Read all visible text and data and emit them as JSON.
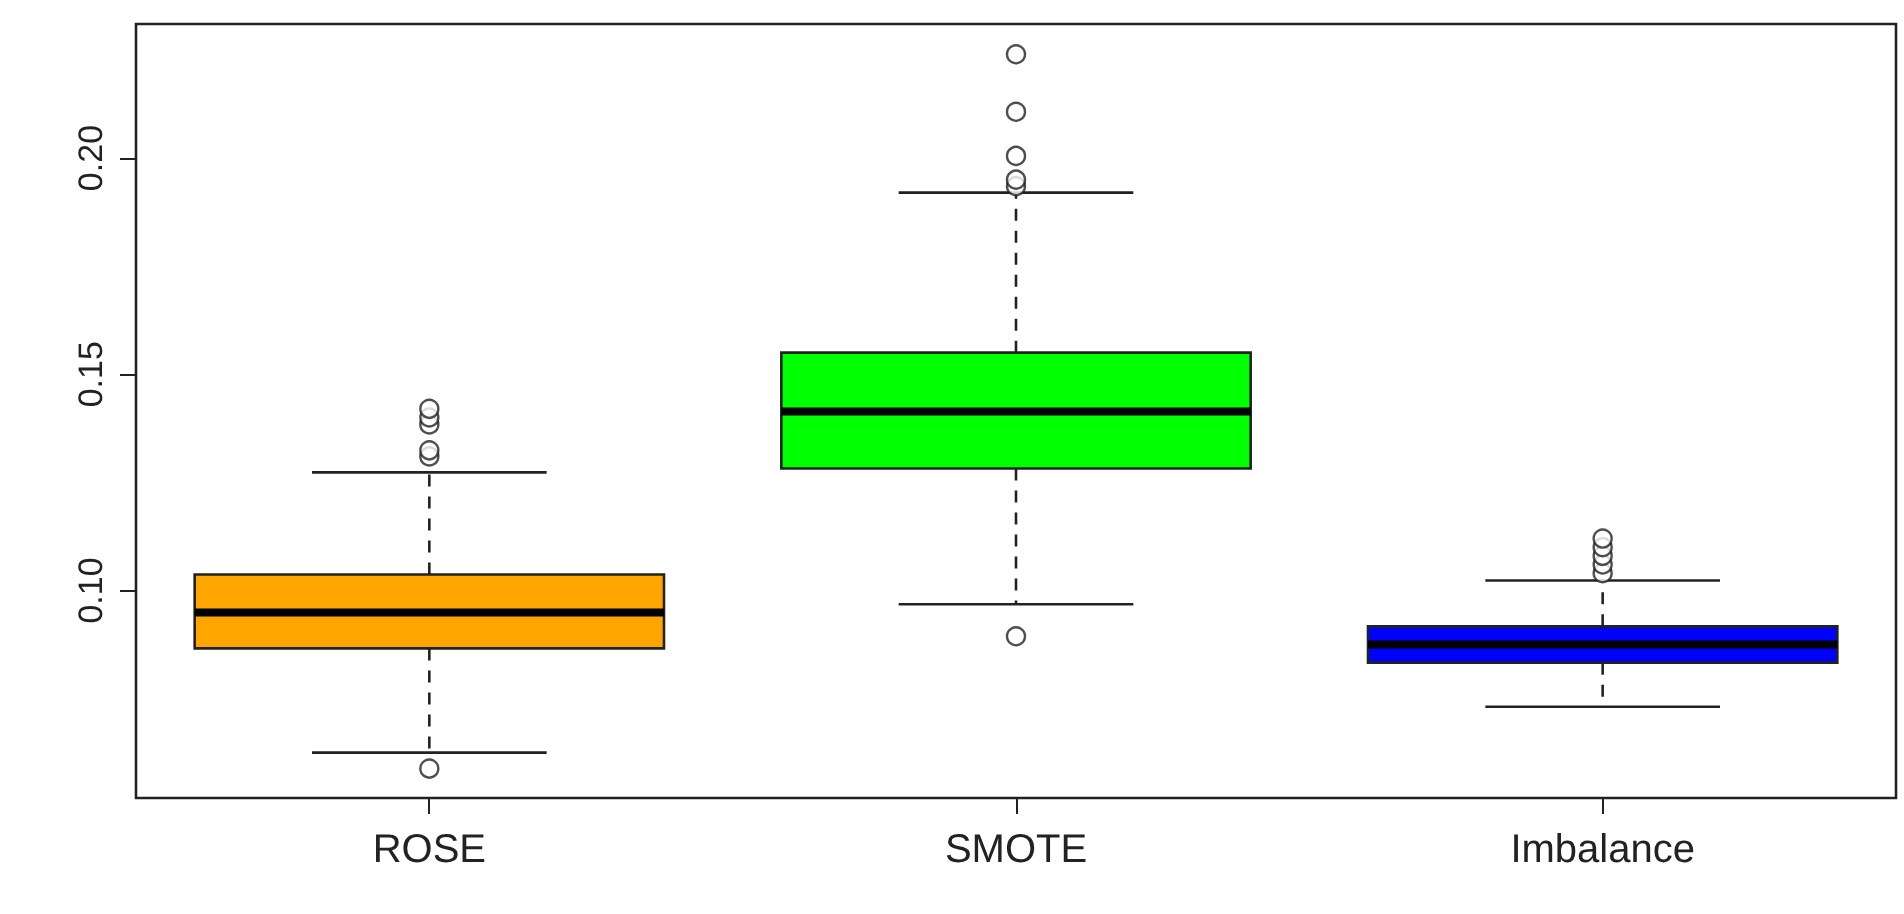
{
  "chart_data": {
    "type": "box",
    "categories": [
      "ROSE",
      "SMOTE",
      "Imbalance"
    ],
    "colors": [
      "#ffa500",
      "#00ff00",
      "#0000ff"
    ],
    "boxes": [
      {
        "low": 0.0625,
        "q1": 0.0866,
        "median": 0.0949,
        "q3": 0.1037,
        "high": 0.1273,
        "outliers": [
          0.0588,
          0.131,
          0.1324,
          0.1384,
          0.14,
          0.142
        ]
      },
      {
        "low": 0.0968,
        "q1": 0.1282,
        "median": 0.1414,
        "q3": 0.155,
        "high": 0.192,
        "outliers": [
          0.0894,
          0.1935,
          0.195,
          0.2005,
          0.2107,
          0.224
        ]
      },
      {
        "low": 0.0731,
        "q1": 0.0833,
        "median": 0.0875,
        "q3": 0.0917,
        "high": 0.1023,
        "outliers": [
          0.104,
          0.106,
          0.108,
          0.11,
          0.112
        ]
      }
    ],
    "ylim": [
      0.052,
      0.231
    ],
    "yticks": [
      {
        "value": 0.1,
        "label": "0.10"
      },
      {
        "value": 0.15,
        "label": "0.15"
      },
      {
        "value": 0.2,
        "label": "0.20"
      }
    ],
    "grid": false,
    "legend": false
  }
}
